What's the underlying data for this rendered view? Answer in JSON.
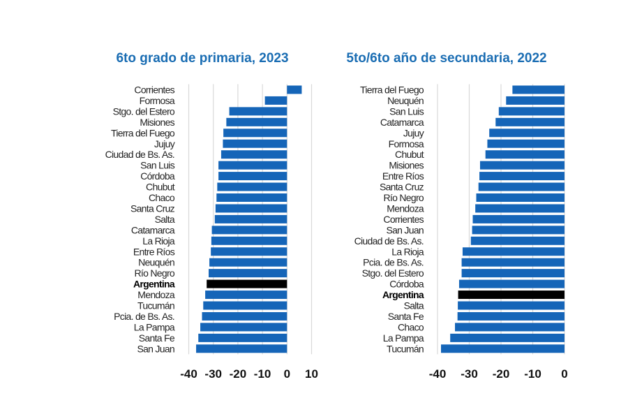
{
  "chart_data": [
    {
      "type": "bar",
      "orientation": "horizontal",
      "title": "6to grado de primaria, 2023",
      "categories": [
        "Corrientes",
        "Formosa",
        "Stgo. del Estero",
        "Misiones",
        "Tierra del Fuego",
        "Jujuy",
        "Ciudad de Bs. As.",
        "San Luis",
        "Córdoba",
        "Chubut",
        "Chaco",
        "Santa Cruz",
        "Salta",
        "Catamarca",
        "La Rioja",
        "Entre Ríos",
        "Neuquén",
        "Río Negro",
        "Argentina",
        "Mendoza",
        "Tucumán",
        "Pcia. de Bs. As.",
        "La Pampa",
        "Santa Fe",
        "San Juan"
      ],
      "values": [
        6.0,
        -9.0,
        -23.5,
        -24.7,
        -25.9,
        -26.1,
        -26.8,
        -27.9,
        -27.9,
        -28.4,
        -28.7,
        -29.1,
        -29.4,
        -30.6,
        -30.8,
        -31.0,
        -31.6,
        -31.9,
        -32.7,
        -33.3,
        -34.1,
        -34.6,
        -35.3,
        -36.1,
        -37.0
      ],
      "highlight": "Argentina",
      "xlim": [
        -40,
        10
      ],
      "xticks": [
        "-40",
        "-30",
        "-20",
        "-10",
        "0",
        "10"
      ],
      "xtick_values": [
        -40,
        -30,
        -20,
        -10,
        0,
        10
      ],
      "grid": true,
      "colors": {
        "bar": "#1565b8",
        "highlight": "#000000"
      }
    },
    {
      "type": "bar",
      "orientation": "horizontal",
      "title": "5to/6to año de secundaria, 2022",
      "categories": [
        "Tierra del Fuego",
        "Neuquén",
        "San Luis",
        "Catamarca",
        "Jujuy",
        "Formosa",
        "Chubut",
        "Misiones",
        "Entre Ríos",
        "Santa Cruz",
        "Río Negro",
        "Mendoza",
        "Corrientes",
        "San Juan",
        "Ciudad de Bs. As.",
        "La Rioja",
        "Pcia. de Bs. As.",
        "Stgo. del Estero",
        "Córdoba",
        "Argentina",
        "Salta",
        "Santa Fe",
        "Chaco",
        "La Pampa",
        "Tucumán"
      ],
      "values": [
        -16.4,
        -18.4,
        -20.7,
        -21.7,
        -23.7,
        -24.3,
        -24.9,
        -26.6,
        -26.8,
        -27.1,
        -27.8,
        -28.1,
        -28.9,
        -29.1,
        -29.5,
        -32.1,
        -32.4,
        -32.4,
        -33.2,
        -33.5,
        -33.6,
        -33.7,
        -34.5,
        -36.0,
        -38.9
      ],
      "highlight": "Argentina",
      "xlim": [
        -40,
        0
      ],
      "xticks": [
        "-40",
        "-30",
        "-20",
        "-10",
        "0"
      ],
      "xtick_values": [
        -40,
        -30,
        -20,
        -10,
        0
      ],
      "grid": true,
      "colors": {
        "bar": "#1565b8",
        "highlight": "#000000"
      }
    }
  ]
}
